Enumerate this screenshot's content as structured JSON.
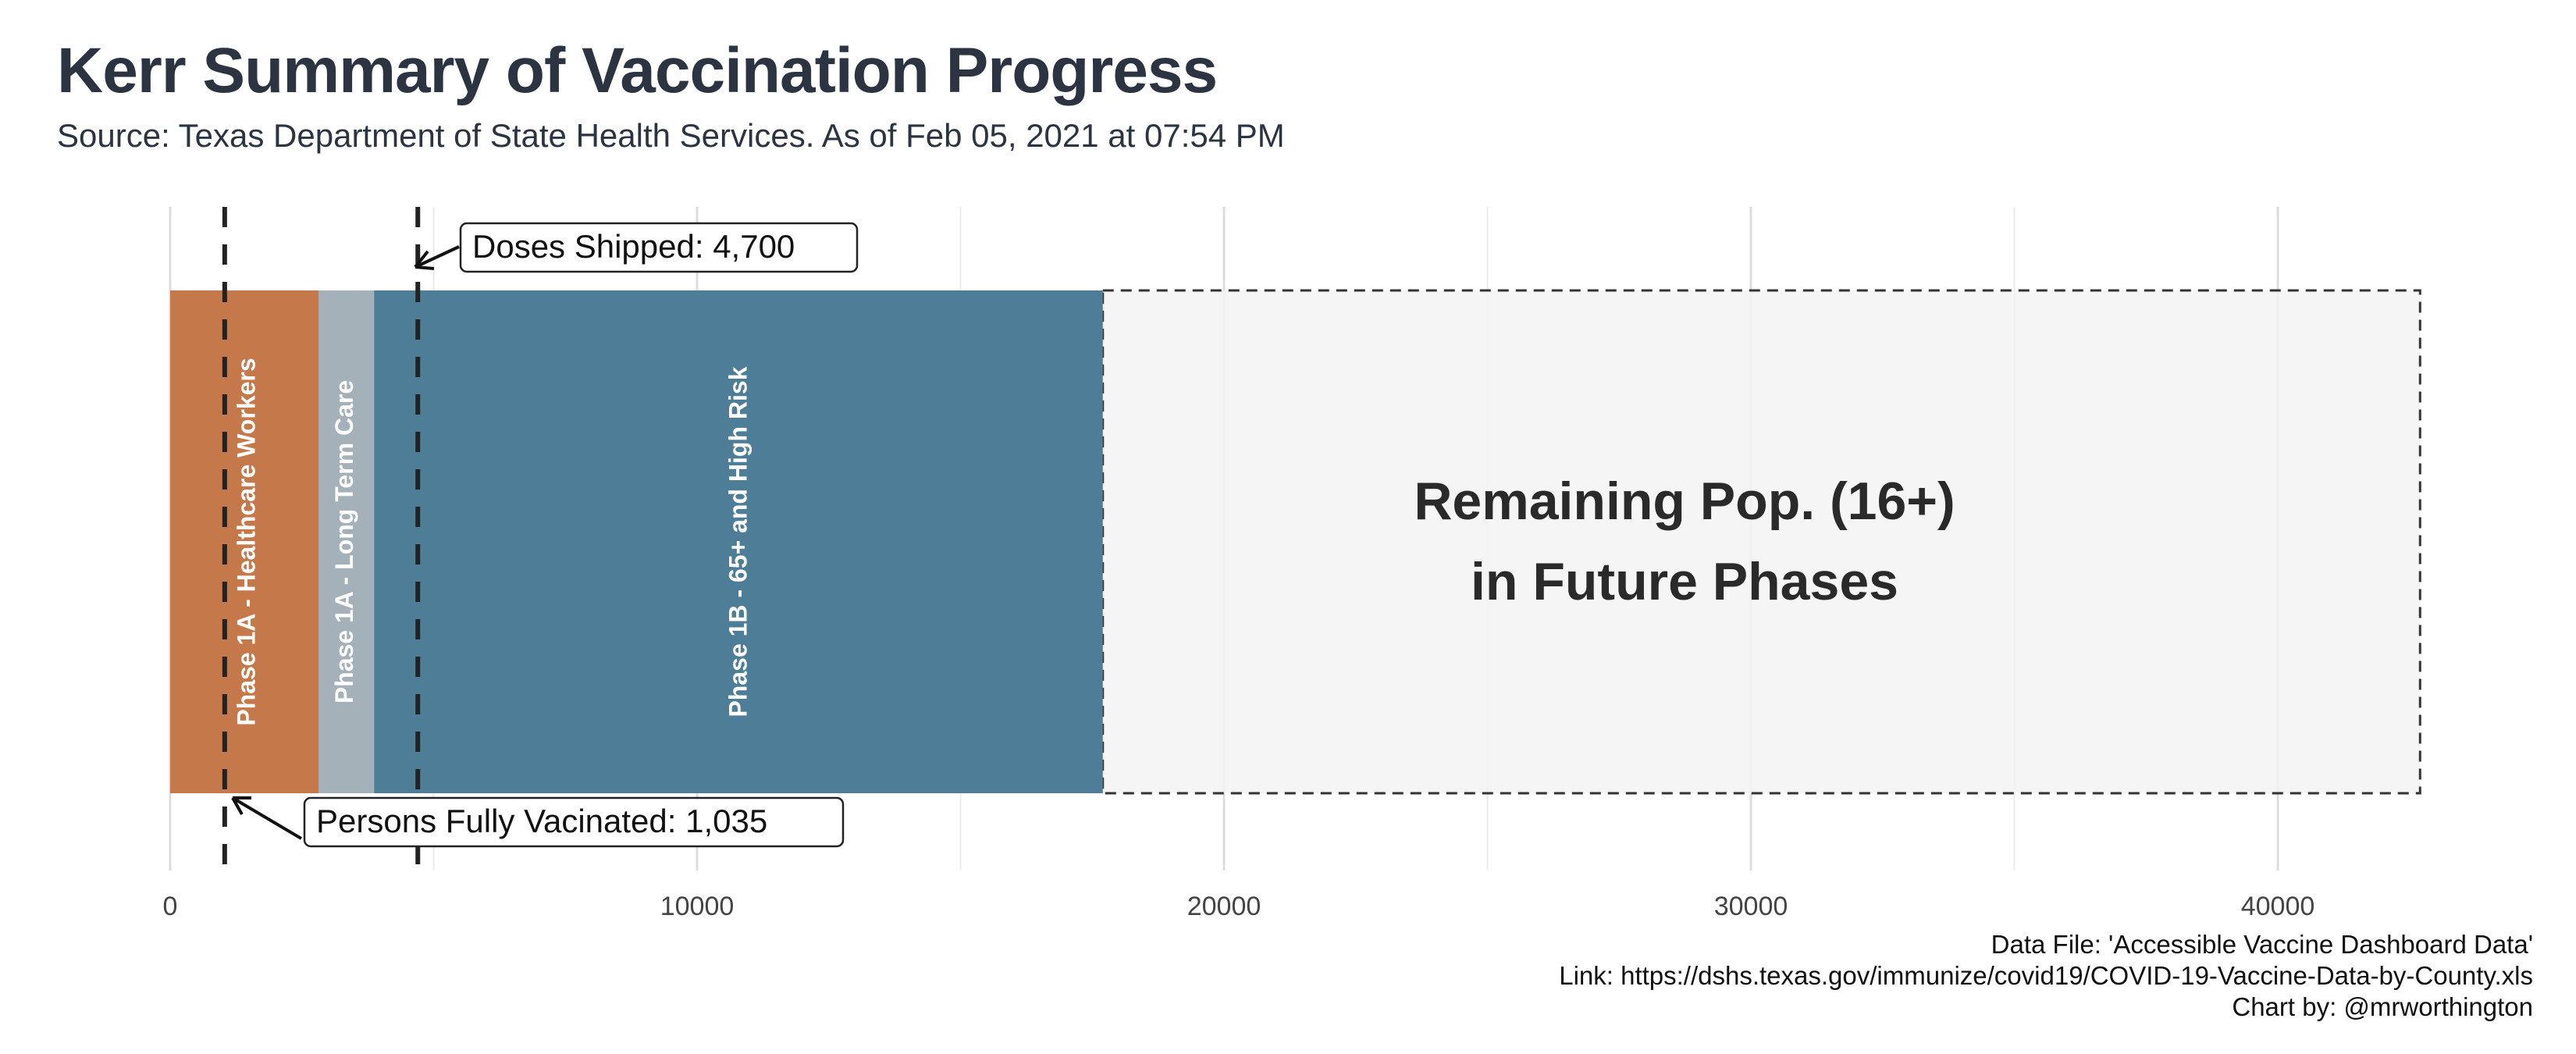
{
  "title": "Kerr Summary of Vaccination Progress",
  "subtitle": "Source: Texas Department of State Health Services. As of Feb 05, 2021 at 07:54 PM",
  "caption": [
    "Data File: 'Accessible Vaccine Dashboard Data'",
    "Link: https://dshs.texas.gov/immunize/covid19/COVID-19-Vaccine-Data-by-County.xls",
    "Chart by: @mrworthington"
  ],
  "chart_data": {
    "type": "bar",
    "orientation": "horizontal-stacked",
    "xlim": [
      0,
      44000
    ],
    "x_ticks": [
      0,
      10000,
      20000,
      30000,
      40000
    ],
    "x_tick_labels": [
      "0",
      "10000",
      "20000",
      "30000",
      "40000"
    ],
    "grid": true,
    "segments": [
      {
        "label": "Phase 1A - Healthcare Workers",
        "start": 0,
        "end": 2820,
        "color": "#c5784a"
      },
      {
        "label": "Phase 1A - Long Term Care",
        "start": 2820,
        "end": 3870,
        "color": "#a5b1b9"
      },
      {
        "label": "Phase 1B - 65+ and High Risk",
        "start": 3870,
        "end": 17700,
        "color": "#4e7d98"
      }
    ],
    "remaining": {
      "label_line1": "Remaining Pop. (16+)",
      "label_line2": "in Future Phases",
      "start": 17700,
      "end": 42700,
      "color": "#f3f3f3"
    },
    "markers": [
      {
        "label": "Doses Shipped: 4,700",
        "value": 4700
      },
      {
        "label": "Persons Fully Vacinated: 1,035",
        "value": 1035
      }
    ]
  }
}
